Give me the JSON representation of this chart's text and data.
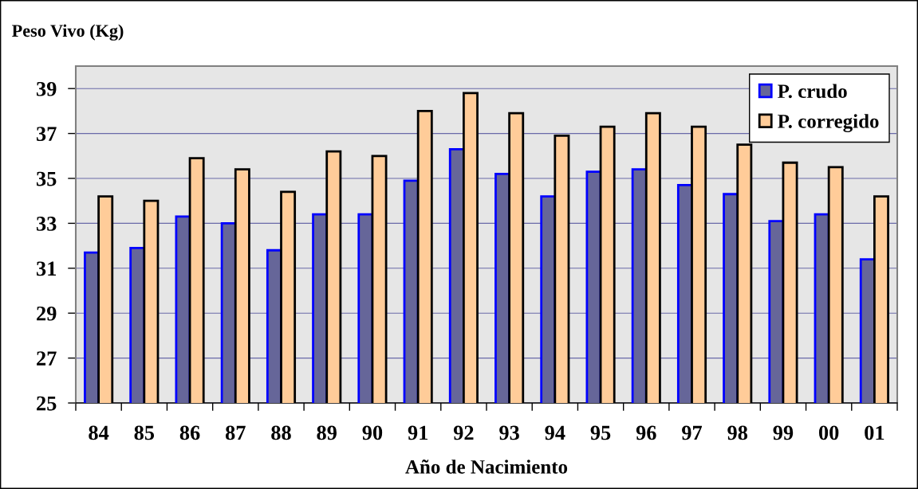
{
  "chart_data": {
    "type": "bar",
    "xlabel": "Año de Nacimiento",
    "ylabel": "Peso Vivo (Kg)",
    "categories": [
      "84",
      "85",
      "86",
      "87",
      "88",
      "89",
      "90",
      "91",
      "92",
      "93",
      "94",
      "95",
      "96",
      "97",
      "98",
      "99",
      "00",
      "01"
    ],
    "series": [
      {
        "name": "P. crudo",
        "color": "#666699",
        "values": [
          31.7,
          31.9,
          33.3,
          33.0,
          31.8,
          33.4,
          33.4,
          34.9,
          36.3,
          35.2,
          34.2,
          35.3,
          35.4,
          34.7,
          34.3,
          33.1,
          33.4,
          31.4
        ]
      },
      {
        "name": "P. corregido",
        "color": "#ffcc99",
        "values": [
          34.2,
          34.0,
          35.9,
          35.4,
          34.4,
          36.2,
          36.0,
          38.0,
          38.8,
          37.9,
          36.9,
          37.3,
          37.9,
          37.3,
          36.5,
          35.7,
          35.5,
          34.2
        ]
      }
    ],
    "ylim": [
      25,
      40
    ],
    "yticks": [
      25,
      27,
      29,
      31,
      33,
      35,
      37,
      39
    ],
    "grid": "y",
    "legend": "top right"
  }
}
